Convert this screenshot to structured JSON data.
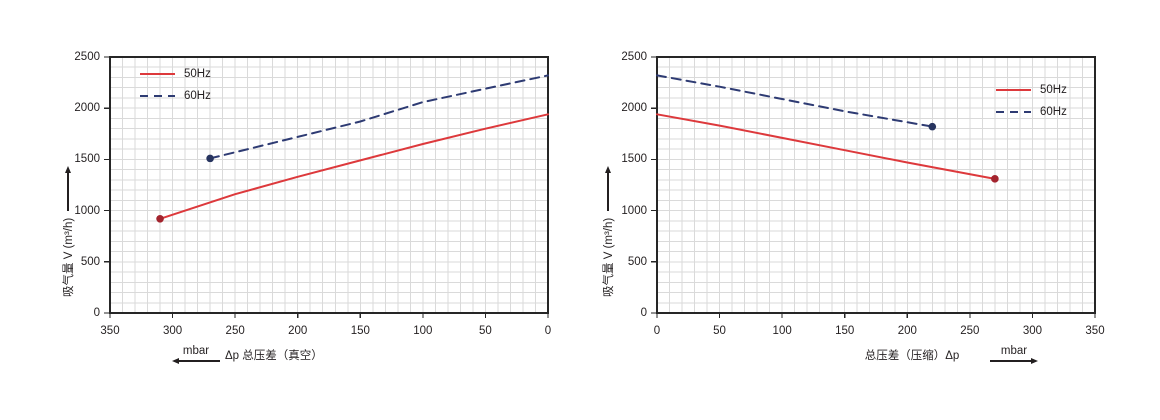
{
  "page": {
    "background": "#ffffff",
    "description_note": "dual pump performance curves"
  },
  "colors": {
    "series_50hz_line": "#dd393c",
    "series_50hz_marker": "#a3242e",
    "series_60hz_line": "#2e3b73",
    "series_60hz_marker": "#27345f",
    "grid": "#dadada",
    "plot_border": "#262626",
    "text": "#231f20"
  },
  "chart_data": [
    {
      "id": "vacuum",
      "type": "line",
      "title": "",
      "ylabel": "吸气量 V (m³/h)",
      "xlabel": "Δp  总压差（真空）",
      "x_unit": "mbar",
      "x_unit_arrow": "left",
      "y_axis_arrow": "up",
      "xlim": [
        350,
        0
      ],
      "ylim": [
        0,
        2500
      ],
      "x_ticks": [
        350,
        300,
        250,
        200,
        150,
        100,
        50,
        0
      ],
      "y_ticks": [
        2500,
        2000,
        1500,
        1000,
        500,
        0
      ],
      "x_minor_step": 10,
      "y_minor_step": 100,
      "grid": true,
      "legend_position": "top-left",
      "series": [
        {
          "name": "50Hz",
          "line": "solid",
          "color": "#dd393c",
          "marker_color": "#a3242e",
          "marker": "first",
          "points": [
            [
              310,
              920
            ],
            [
              250,
              1160
            ],
            [
              200,
              1330
            ],
            [
              150,
              1490
            ],
            [
              100,
              1650
            ],
            [
              50,
              1800
            ],
            [
              0,
              1940
            ]
          ]
        },
        {
          "name": "60Hz",
          "line": "dashed",
          "color": "#2e3b73",
          "marker_color": "#27345f",
          "marker": "first",
          "points": [
            [
              270,
              1510
            ],
            [
              200,
              1720
            ],
            [
              150,
              1870
            ],
            [
              100,
              2060
            ],
            [
              50,
              2190
            ],
            [
              0,
              2320
            ]
          ]
        }
      ]
    },
    {
      "id": "compression",
      "type": "line",
      "title": "",
      "ylabel": "吸气量 V (m³/h)",
      "xlabel": "总压差（压缩）Δp",
      "x_unit": "mbar",
      "x_unit_arrow": "right",
      "y_axis_arrow": "up",
      "xlim": [
        0,
        350
      ],
      "ylim": [
        0,
        2500
      ],
      "x_ticks": [
        0,
        50,
        100,
        150,
        200,
        250,
        300,
        350
      ],
      "y_ticks": [
        2500,
        2000,
        1500,
        1000,
        500,
        0
      ],
      "x_minor_step": 10,
      "y_minor_step": 100,
      "grid": true,
      "legend_position": "top-right",
      "series": [
        {
          "name": "50Hz",
          "line": "solid",
          "color": "#dd393c",
          "marker_color": "#a3242e",
          "marker": "last",
          "points": [
            [
              0,
              1940
            ],
            [
              50,
              1830
            ],
            [
              100,
              1710
            ],
            [
              150,
              1590
            ],
            [
              200,
              1470
            ],
            [
              270,
              1310
            ]
          ]
        },
        {
          "name": "60Hz",
          "line": "dashed",
          "color": "#2e3b73",
          "marker_color": "#27345f",
          "marker": "last",
          "points": [
            [
              0,
              2320
            ],
            [
              50,
              2210
            ],
            [
              100,
              2090
            ],
            [
              150,
              1970
            ],
            [
              220,
              1820
            ]
          ]
        }
      ]
    }
  ]
}
